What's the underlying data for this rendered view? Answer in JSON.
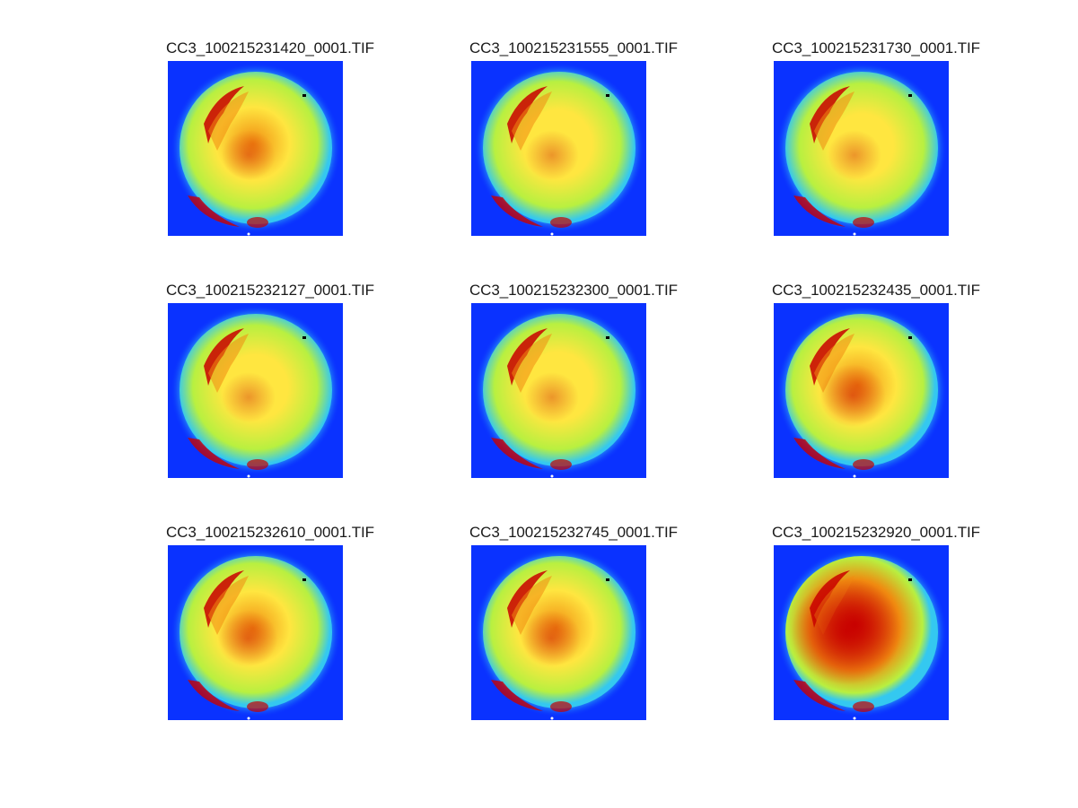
{
  "figure": {
    "panels": [
      {
        "title": "CC3_100215231420_0001.TIF",
        "intensity": 0.55,
        "dark_patch": 0.0
      },
      {
        "title": "CC3_100215231555_0001.TIF",
        "intensity": 0.45,
        "dark_patch": 0.0
      },
      {
        "title": "CC3_100215231730_0001.TIF",
        "intensity": 0.3,
        "dark_patch": 0.0
      },
      {
        "title": "CC3_100215232127_0001.TIF",
        "intensity": 0.35,
        "dark_patch": 0.0
      },
      {
        "title": "CC3_100215232300_0001.TIF",
        "intensity": 0.45,
        "dark_patch": 0.0
      },
      {
        "title": "CC3_100215232435_0001.TIF",
        "intensity": 0.65,
        "dark_patch": 0.2
      },
      {
        "title": "CC3_100215232610_0001.TIF",
        "intensity": 0.55,
        "dark_patch": 0.1
      },
      {
        "title": "CC3_100215232745_0001.TIF",
        "intensity": 0.6,
        "dark_patch": 0.1
      },
      {
        "title": "CC3_100215232920_0001.TIF",
        "intensity": 0.95,
        "dark_patch": 0.9
      }
    ],
    "colors": {
      "background": "#0a32ff",
      "rim": "#34c8f0",
      "mid": "#b8f040",
      "center": "#ffe640",
      "hot": "#f08a10",
      "very_hot": "#c80000"
    }
  }
}
